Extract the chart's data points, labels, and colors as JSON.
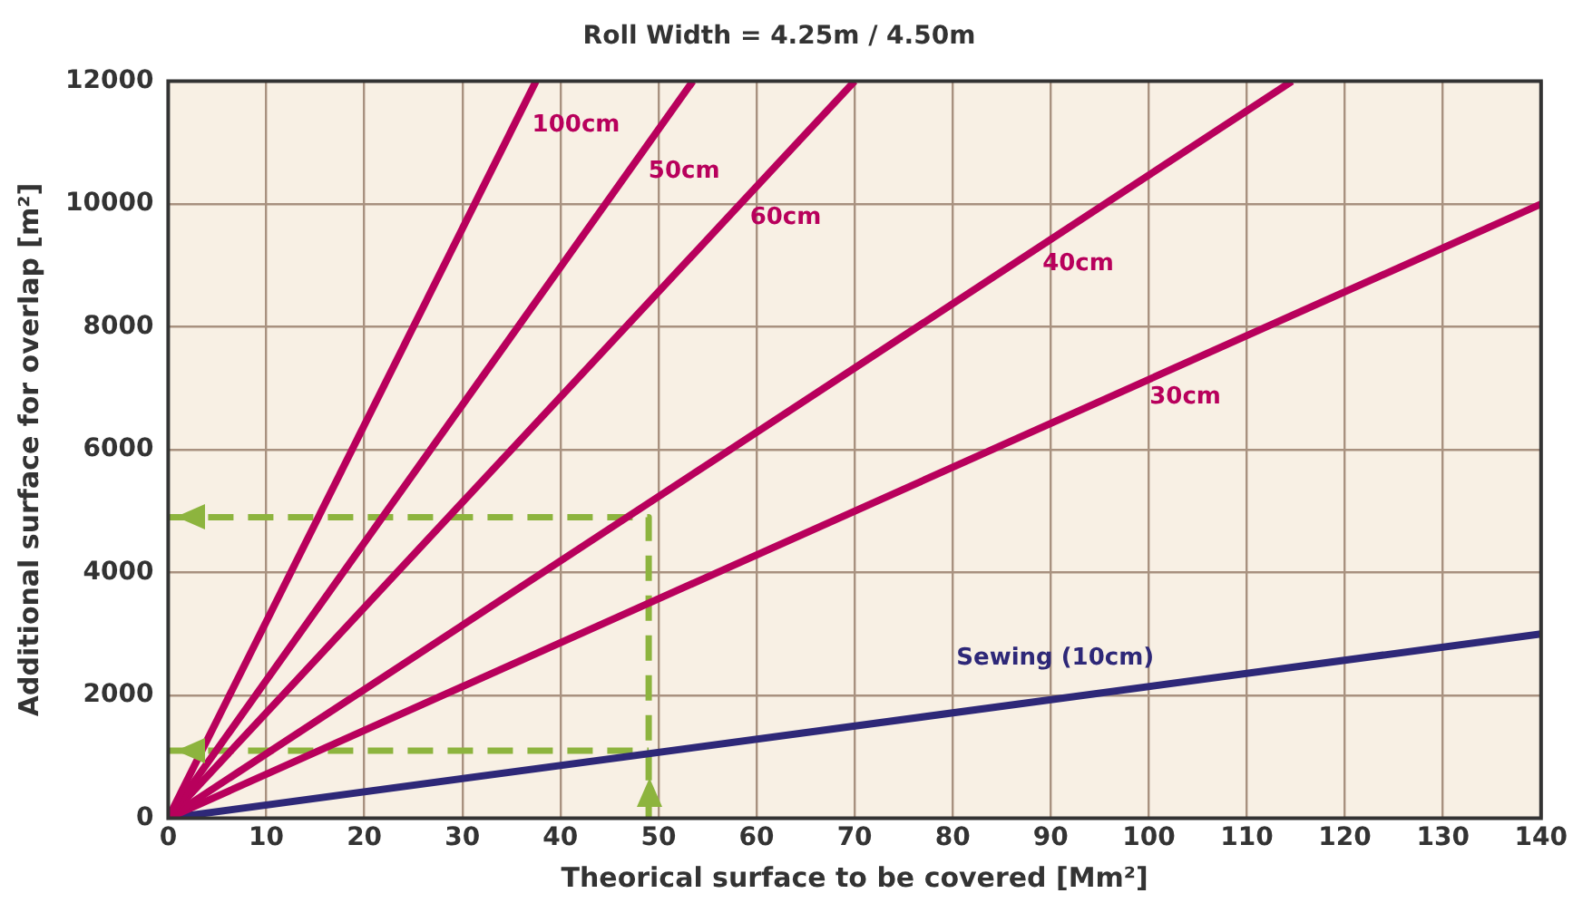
{
  "chart_data": {
    "type": "line",
    "title": "Roll Width = 4.25m / 4.50m",
    "xlabel": "Theorical surface to be covered [Mm²]",
    "ylabel": "Additional surface for overlap [m²]",
    "xlim": [
      0,
      140
    ],
    "xticks": [
      0,
      10,
      20,
      30,
      40,
      50,
      60,
      70,
      80,
      90,
      100,
      110,
      120,
      130,
      140
    ],
    "ylim": [
      0,
      12000
    ],
    "yticks": [
      0,
      2000,
      4000,
      6000,
      8000,
      10000,
      12000
    ],
    "grid": true,
    "legend": false,
    "marker": "none",
    "series": [
      {
        "name": "100cm",
        "color": "#b8005c",
        "x": [
          0,
          37.5
        ],
        "values": [
          0,
          12000
        ]
      },
      {
        "name": "50cm",
        "color": "#b8005c",
        "x": [
          0,
          53.5
        ],
        "values": [
          0,
          12000
        ]
      },
      {
        "name": "60cm",
        "color": "#b8005c",
        "x": [
          0,
          70
        ],
        "values": [
          0,
          12000
        ]
      },
      {
        "name": "40cm",
        "color": "#b8005c",
        "x": [
          0,
          114.6
        ],
        "values": [
          0,
          12000
        ]
      },
      {
        "name": "30cm",
        "color": "#b8005c",
        "x": [
          0,
          140
        ],
        "values": [
          0,
          10000
        ]
      },
      {
        "name": "Sewing (10cm)",
        "color": "#2e2878",
        "x": [
          0,
          140
        ],
        "values": [
          0,
          3000
        ]
      },
      {
        "color": "#8db43e",
        "line_style": "dashed",
        "x": [
          0,
          49,
          49
        ],
        "values": [
          4900,
          4900,
          0
        ]
      },
      {
        "color": "#8db43e",
        "line_style": "dashed",
        "x": [
          0,
          49
        ],
        "values": [
          1100,
          1100
        ]
      }
    ]
  }
}
